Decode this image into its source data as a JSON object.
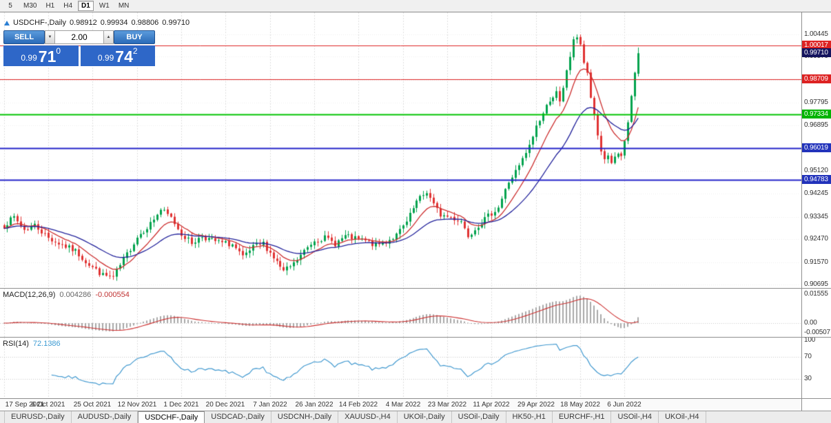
{
  "toolbar": {
    "timeframes": [
      "5",
      "M30",
      "H1",
      "H4",
      "D1",
      "W1",
      "MN"
    ],
    "active": "D1"
  },
  "chart": {
    "title": {
      "symbol": "USDCHF-,Daily",
      "open": "0.98912",
      "high": "0.99934",
      "low": "0.98806",
      "close": "0.99710"
    }
  },
  "trade_panel": {
    "sell_label": "SELL",
    "buy_label": "BUY",
    "volume": "2.00",
    "volume_down_icon": "▼",
    "volume_up_icon": "▲",
    "sell_price": {
      "prefix": "0.99",
      "big": "71",
      "sup": "0"
    },
    "buy_price": {
      "prefix": "0.99",
      "big": "74",
      "sup": "2"
    }
  },
  "price_axis": {
    "ticks": [
      {
        "label": "1.00445",
        "value": 1.00445
      },
      {
        "label": "0.99570",
        "value": 0.9957
      },
      {
        "label": "0.98670",
        "value": 0.9867
      },
      {
        "label": "0.97795",
        "value": 0.97795
      },
      {
        "label": "0.96895",
        "value": 0.96895
      },
      {
        "label": "0.96020",
        "value": 0.9602
      },
      {
        "label": "0.95120",
        "value": 0.9512
      },
      {
        "label": "0.94245",
        "value": 0.94245
      },
      {
        "label": "0.93345",
        "value": 0.93345
      },
      {
        "label": "0.92470",
        "value": 0.9247
      },
      {
        "label": "0.91570",
        "value": 0.9157
      },
      {
        "label": "0.90695",
        "value": 0.90695
      }
    ],
    "badges": [
      {
        "label": "1.00017",
        "value": 1.00017,
        "color": "#dd2222",
        "name": "resistance-1"
      },
      {
        "label": "0.99710",
        "value": 0.9971,
        "color": "#14145e",
        "name": "current-price"
      },
      {
        "label": "0.98709",
        "value": 0.98709,
        "color": "#dd2222",
        "name": "resistance-2"
      },
      {
        "label": "0.97334",
        "value": 0.97334,
        "color": "#00b400",
        "name": "pivot-green"
      },
      {
        "label": "0.96019",
        "value": 0.96019,
        "color": "#2233bb",
        "name": "support-1"
      },
      {
        "label": "0.94783",
        "value": 0.94783,
        "color": "#2233bb",
        "name": "support-2"
      }
    ]
  },
  "levels": [
    {
      "price": 1.00017,
      "color": "#dd2222",
      "width": 1
    },
    {
      "price": 0.98709,
      "color": "#dd2222",
      "width": 1
    },
    {
      "price": 0.97334,
      "color": "#00c400",
      "width": 2
    },
    {
      "price": 0.96019,
      "color": "#2222c8",
      "width": 2
    },
    {
      "price": 0.94783,
      "color": "#2222c8",
      "width": 2
    }
  ],
  "macd": {
    "label": "MACD(12,26,9)",
    "value_main": "0.004286",
    "value_signal": "-0.000554",
    "axis": [
      {
        "label": "0.01555",
        "value": 0.01555
      },
      {
        "label": "0.00",
        "value": 0
      },
      {
        "label": "-0.00507",
        "value": -0.00507
      }
    ]
  },
  "rsi": {
    "label": "RSI(14)",
    "value": "72.1386",
    "axis": [
      {
        "label": "100",
        "value": 100
      },
      {
        "label": "70",
        "value": 70
      },
      {
        "label": "30",
        "value": 30
      }
    ]
  },
  "date_axis": [
    "17 Sep 2021",
    "6 Oct 2021",
    "25 Oct 2021",
    "12 Nov 2021",
    "1 Dec 2021",
    "20 Dec 2021",
    "7 Jan 2022",
    "26 Jan 2022",
    "14 Feb 2022",
    "4 Mar 2022",
    "23 Mar 2022",
    "11 Apr 2022",
    "29 Apr 2022",
    "18 May 2022",
    "6 Jun 2022"
  ],
  "tabs": [
    {
      "label": "EURUSD-,Daily"
    },
    {
      "label": "AUDUSD-,Daily"
    },
    {
      "label": "USDCHF-,Daily",
      "active": true
    },
    {
      "label": "USDCAD-,Daily"
    },
    {
      "label": "USDCNH-,Daily"
    },
    {
      "label": "XAUUSD-,H4"
    },
    {
      "label": "UKOil-,Daily"
    },
    {
      "label": "USOil-,Daily"
    },
    {
      "label": "HK50-,H1"
    },
    {
      "label": "EURCHF-,H1"
    },
    {
      "label": "USOil-,H4"
    },
    {
      "label": "UKOil-,H4"
    }
  ],
  "chart_data": {
    "type": "candlestick",
    "symbol": "USDCHF",
    "timeframe": "Daily",
    "last_candle": {
      "open": 0.98912,
      "high": 0.99934,
      "low": 0.98806,
      "close": 0.9971
    },
    "x_labels": [
      "17 Sep 2021",
      "6 Oct 2021",
      "25 Oct 2021",
      "12 Nov 2021",
      "1 Dec 2021",
      "20 Dec 2021",
      "7 Jan 2022",
      "26 Jan 2022",
      "14 Feb 2022",
      "4 Mar 2022",
      "23 Mar 2022",
      "11 Apr 2022",
      "29 Apr 2022",
      "18 May 2022",
      "6 Jun 2022"
    ],
    "candles_per_label": 13,
    "candle_count": 187,
    "first_x": 5.5,
    "candle_spacing": 4.95,
    "y_range": [
      0.9057,
      1.013
    ],
    "grid": true,
    "price_anchors": [
      [
        0,
        0.93
      ],
      [
        3,
        0.9332
      ],
      [
        6,
        0.9284
      ],
      [
        9,
        0.9302
      ],
      [
        13,
        0.9252
      ],
      [
        17,
        0.9224
      ],
      [
        21,
        0.92
      ],
      [
        25,
        0.9148
      ],
      [
        29,
        0.9106
      ],
      [
        32,
        0.9098
      ],
      [
        35,
        0.9166
      ],
      [
        39,
        0.9256
      ],
      [
        43,
        0.9308
      ],
      [
        46,
        0.9362
      ],
      [
        49,
        0.933
      ],
      [
        52,
        0.9268
      ],
      [
        55,
        0.9232
      ],
      [
        58,
        0.9258
      ],
      [
        61,
        0.9242
      ],
      [
        64,
        0.9232
      ],
      [
        67,
        0.9226
      ],
      [
        70,
        0.9174
      ],
      [
        73,
        0.9214
      ],
      [
        76,
        0.923
      ],
      [
        79,
        0.9176
      ],
      [
        82,
        0.912
      ],
      [
        85,
        0.915
      ],
      [
        88,
        0.92
      ],
      [
        91,
        0.9244
      ],
      [
        94,
        0.9252
      ],
      [
        97,
        0.923
      ],
      [
        100,
        0.9258
      ],
      [
        103,
        0.9248
      ],
      [
        106,
        0.924
      ],
      [
        109,
        0.9222
      ],
      [
        112,
        0.9238
      ],
      [
        115,
        0.9262
      ],
      [
        118,
        0.9312
      ],
      [
        121,
        0.9392
      ],
      [
        124,
        0.9432
      ],
      [
        126,
        0.938
      ],
      [
        128,
        0.9342
      ],
      [
        131,
        0.9332
      ],
      [
        134,
        0.9318
      ],
      [
        136,
        0.9262
      ],
      [
        139,
        0.9302
      ],
      [
        142,
        0.9336
      ],
      [
        145,
        0.9372
      ],
      [
        148,
        0.947
      ],
      [
        151,
        0.953
      ],
      [
        154,
        0.9608
      ],
      [
        156,
        0.9688
      ],
      [
        158,
        0.9736
      ],
      [
        160,
        0.9792
      ],
      [
        162,
        0.9816
      ],
      [
        163,
        0.9776
      ],
      [
        164,
        0.983
      ],
      [
        165,
        0.9906
      ],
      [
        166,
        0.996
      ],
      [
        167,
        1.0016
      ],
      [
        168,
        1.0038
      ],
      [
        169,
        1.0008
      ],
      [
        170,
        0.9934
      ],
      [
        171,
        0.9888
      ],
      [
        172,
        0.98
      ],
      [
        173,
        0.972
      ],
      [
        174,
        0.965
      ],
      [
        175,
        0.959
      ],
      [
        176,
        0.9562
      ],
      [
        177,
        0.9572
      ],
      [
        178,
        0.9548
      ],
      [
        179,
        0.956
      ],
      [
        180,
        0.9578
      ],
      [
        181,
        0.956
      ],
      [
        182,
        0.9622
      ],
      [
        183,
        0.9702
      ],
      [
        184,
        0.9806
      ],
      [
        185,
        0.9891
      ],
      [
        186,
        0.9971
      ]
    ],
    "levels": [
      1.00017,
      0.98709,
      0.97334,
      0.96019,
      0.94783
    ],
    "overlays": [
      {
        "name": "ma-fast",
        "color": "#cc2e2e",
        "period": 10
      },
      {
        "name": "ma-slow",
        "color": "#20209a",
        "period": 26
      }
    ],
    "colors": {
      "up": "#00a24d",
      "down": "#e03232",
      "macd_hist": "#a8a8a8",
      "macd_signal": "#cc2e2e",
      "rsi": "#4098cf"
    },
    "indicators": [
      {
        "name": "MACD",
        "params": "12,26,9",
        "main": 0.004286,
        "signal": -0.000554,
        "axis_max": 0.01555,
        "axis_min": -0.00507
      },
      {
        "name": "RSI",
        "params": "14",
        "value": 72.1386,
        "levels": [
          30,
          70
        ]
      }
    ]
  }
}
